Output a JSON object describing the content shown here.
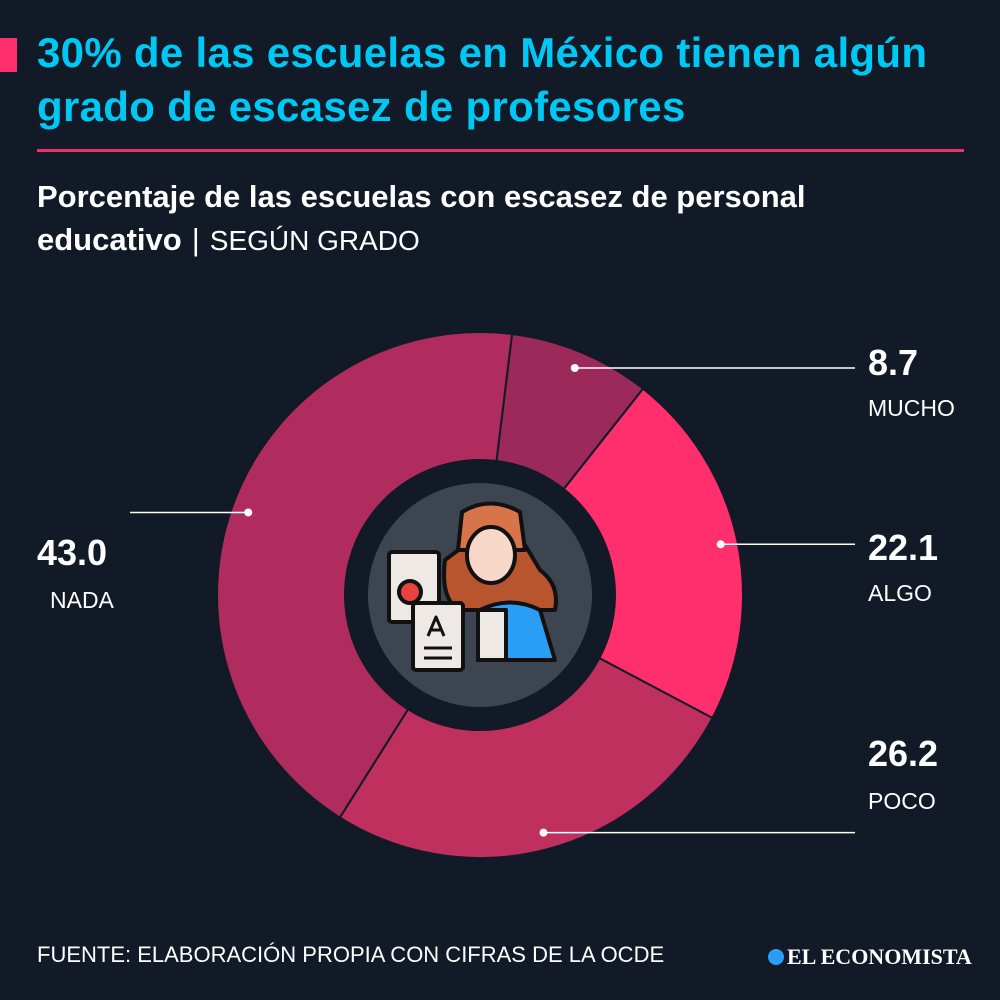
{
  "header": {
    "title": "30% de las escuelas en México tienen algún grado de escasez de profesores",
    "subtitle_main": "Porcentaje de las escuelas con escasez de personal educativo",
    "subtitle_sep": "|",
    "subtitle_grade": "SEGÚN GRADO"
  },
  "chart_data": {
    "type": "pie",
    "title": "Porcentaje de las escuelas con escasez de personal educativo | SEGÚN GRADO",
    "categories": [
      "MUCHO",
      "ALGO",
      "POCO",
      "NADA"
    ],
    "values": [
      8.7,
      22.1,
      26.2,
      43.0
    ],
    "value_labels": [
      "8.7",
      "22.1",
      "26.2",
      "43.0"
    ],
    "colors": [
      "#9b2a5a",
      "#ff2e6c",
      "#c0305f",
      "#b02c5e"
    ],
    "donut": true,
    "center_icon": "teacher-icon"
  },
  "footer": {
    "source": "FUENTE: ELABORACIÓN PROPIA CON CIFRAS DE LA OCDE",
    "brand": "EL ECONOMISTA"
  },
  "colors": {
    "background": "#111a26",
    "title": "#00c8f5",
    "accent": "#ff2e6c"
  }
}
